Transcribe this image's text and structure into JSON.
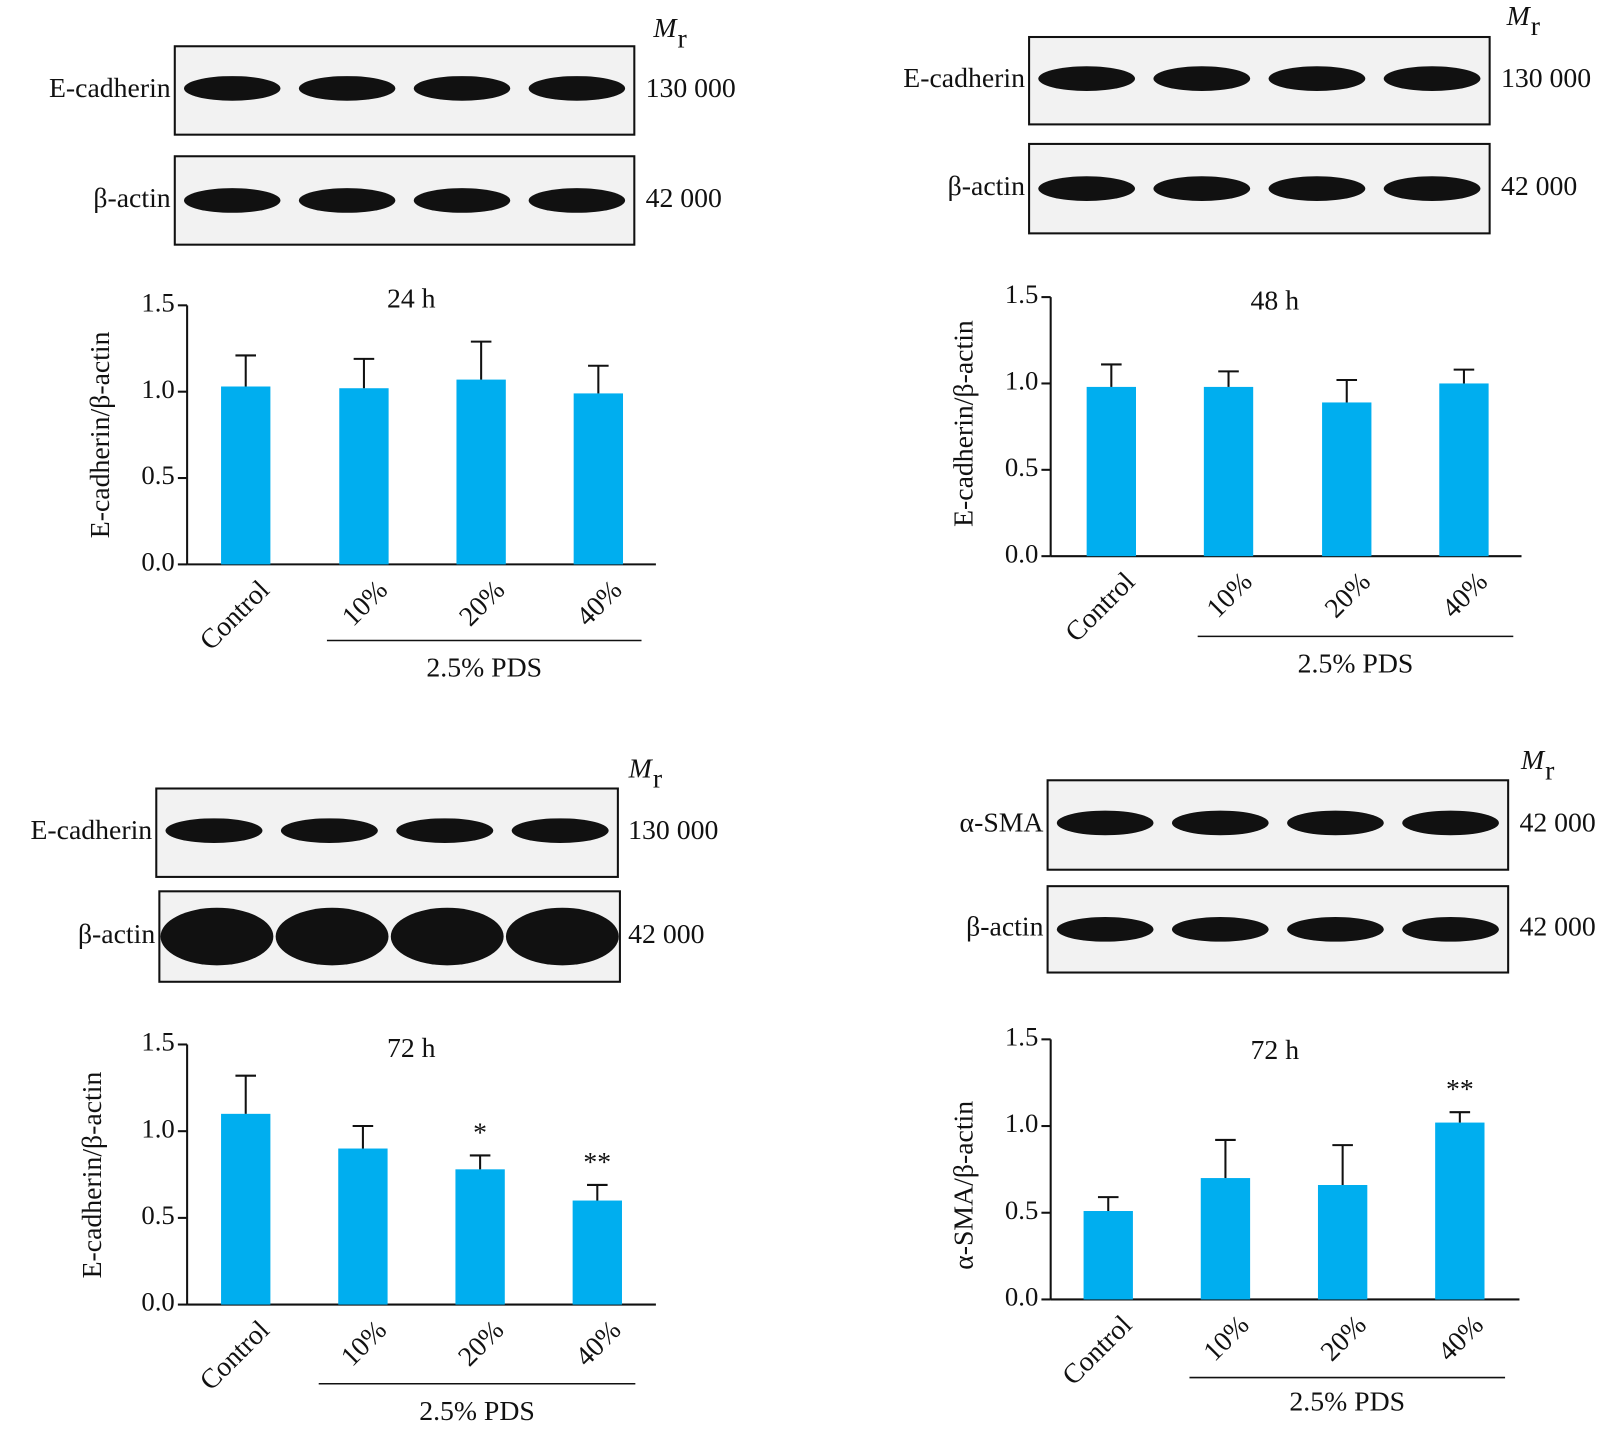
{
  "chart_data": [
    {
      "type": "bar",
      "title": "24 h",
      "ylabel": "E-cadherin/β-actin",
      "categories": [
        "Control",
        "10%",
        "20%",
        "40%"
      ],
      "group_label": "2.5% PDS",
      "values": [
        1.03,
        1.02,
        1.07,
        0.99
      ],
      "errors": [
        0.18,
        0.17,
        0.22,
        0.16
      ],
      "color": "#00aeef",
      "ylim": [
        0,
        1.5
      ],
      "yticks": [
        {
          "value": 0,
          "label": "0.0"
        },
        {
          "value": 0.5,
          "label": "0.5"
        },
        {
          "value": 1,
          "label": "1.0"
        },
        {
          "value": 1.5,
          "label": "1.5"
        }
      ],
      "blot_header": {
        "symbol": "M",
        "subscript": "r"
      },
      "blots": [
        {
          "label": "E-cadherin",
          "mr": "130 000"
        },
        {
          "label": "β-actin",
          "mr": "42 000"
        }
      ]
    },
    {
      "type": "bar",
      "title": "48 h",
      "ylabel": "E-cadherin/β-actin",
      "categories": [
        "Control",
        "10%",
        "20%",
        "40%"
      ],
      "group_label": "2.5% PDS",
      "values": [
        0.98,
        0.98,
        0.89,
        1.0
      ],
      "errors": [
        0.13,
        0.09,
        0.13,
        0.08
      ],
      "color": "#00aeef",
      "ylim": [
        0,
        1.5
      ],
      "yticks": [
        {
          "value": 0,
          "label": "0.0"
        },
        {
          "value": 0.5,
          "label": "0.5"
        },
        {
          "value": 1,
          "label": "1.0"
        },
        {
          "value": 1.5,
          "label": "1.5"
        }
      ],
      "blot_header": {
        "symbol": "M",
        "subscript": "r"
      },
      "blots": [
        {
          "label": "E-cadherin",
          "mr": "130 000"
        },
        {
          "label": "β-actin",
          "mr": "42 000"
        }
      ]
    },
    {
      "type": "bar",
      "title": "72 h",
      "ylabel": "E-cadherin/β-actin",
      "categories": [
        "Control",
        "10%",
        "20%",
        "40%"
      ],
      "group_label": "2.5% PDS",
      "values": [
        1.1,
        0.9,
        0.78,
        0.6
      ],
      "errors": [
        0.22,
        0.13,
        0.08,
        0.09
      ],
      "color": "#00aeef",
      "ylim": [
        0,
        1.5
      ],
      "yticks": [
        {
          "value": 0,
          "label": "0.0"
        },
        {
          "value": 0.5,
          "label": "0.5"
        },
        {
          "value": 1,
          "label": "1.0"
        },
        {
          "value": 1.5,
          "label": "1.5"
        }
      ],
      "annotations": [
        {
          "category": "20%",
          "text": "*"
        },
        {
          "category": "40%",
          "text": "**"
        }
      ],
      "blot_header": {
        "symbol": "M",
        "subscript": "r"
      },
      "blots": [
        {
          "label": "E-cadherin",
          "mr": "130 000"
        },
        {
          "label": "β-actin",
          "mr": "42 000"
        }
      ]
    },
    {
      "type": "bar",
      "title": "72 h",
      "ylabel": "α-SMA/β-actin",
      "categories": [
        "Control",
        "10%",
        "20%",
        "40%"
      ],
      "group_label": "2.5% PDS",
      "values": [
        0.51,
        0.7,
        0.66,
        1.02
      ],
      "errors": [
        0.08,
        0.22,
        0.23,
        0.06
      ],
      "color": "#00aeef",
      "ylim": [
        0,
        1.5
      ],
      "yticks": [
        {
          "value": 0,
          "label": "0.0"
        },
        {
          "value": 0.5,
          "label": "0.5"
        },
        {
          "value": 1,
          "label": "1.0"
        },
        {
          "value": 1.5,
          "label": "1.5"
        }
      ],
      "annotations": [
        {
          "category": "40%",
          "text": "**"
        }
      ],
      "blot_header": {
        "symbol": "M",
        "subscript": "r"
      },
      "blots": [
        {
          "label": "α-SMA",
          "mr": "42 000"
        },
        {
          "label": "β-actin",
          "mr": "42 000"
        }
      ]
    }
  ]
}
